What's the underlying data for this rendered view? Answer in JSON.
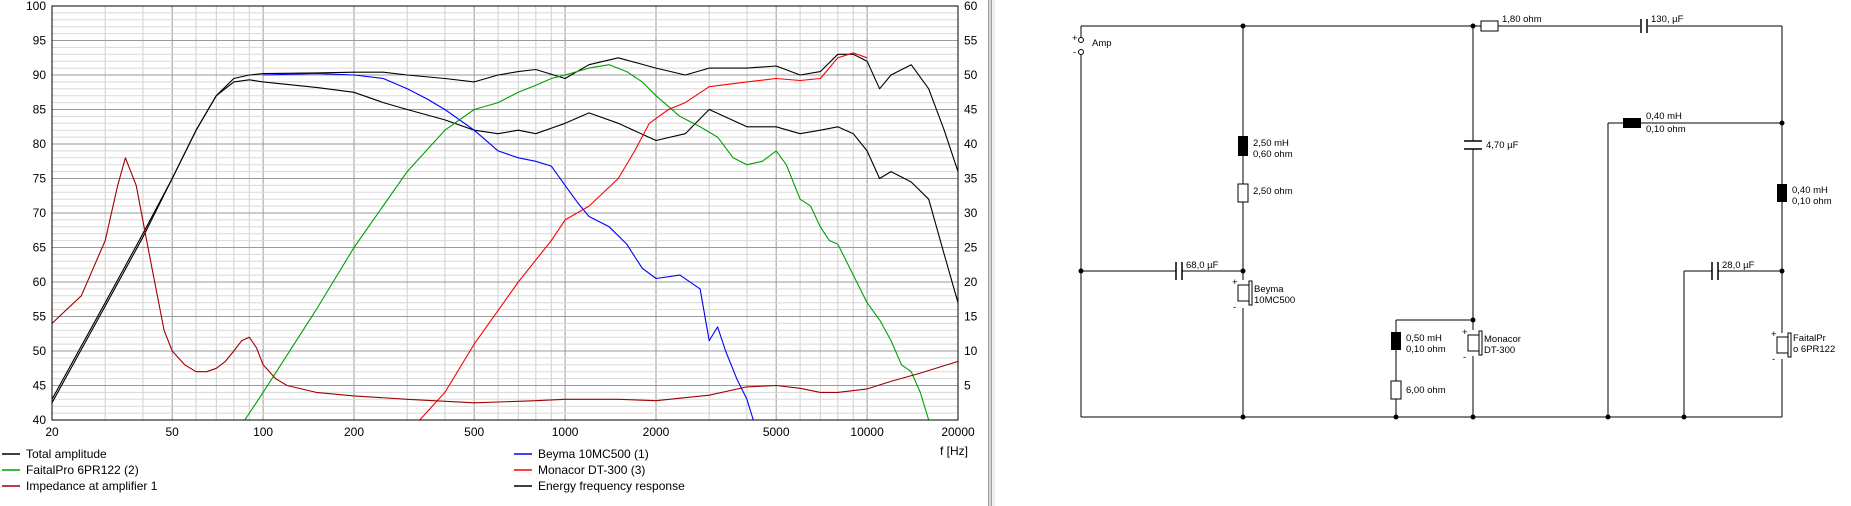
{
  "chart_data": {
    "type": "line",
    "xscale": "log",
    "xlim": [
      20,
      20000
    ],
    "ylim": [
      40,
      100
    ],
    "y2lim": [
      0,
      60
    ],
    "x_ticks": [
      "20",
      "50",
      "100",
      "200",
      "500",
      "1000",
      "2000",
      "5000",
      "10000",
      "20000"
    ],
    "y_ticks": [
      "40",
      "45",
      "50",
      "55",
      "60",
      "65",
      "70",
      "75",
      "80",
      "85",
      "90",
      "95",
      "100"
    ],
    "y2_ticks": [
      "5",
      "10",
      "15",
      "20",
      "25",
      "30",
      "35",
      "40",
      "45",
      "50",
      "55",
      "60"
    ],
    "xlabel": "f [Hz]",
    "grid": true,
    "legend_position": "bottom",
    "series": [
      {
        "name": "Total amplitude",
        "color": "#000000",
        "axis": "left",
        "x": [
          20,
          30,
          40,
          50,
          60,
          70,
          80,
          90,
          100,
          150,
          200,
          250,
          300,
          400,
          500,
          600,
          700,
          800,
          1000,
          1200,
          1500,
          2000,
          2500,
          3000,
          4000,
          5000,
          6000,
          7000,
          8000,
          9000,
          10000,
          11000,
          12000,
          14000,
          16000,
          18000,
          20000
        ],
        "y": [
          43,
          57,
          67,
          75,
          82,
          87,
          89.5,
          90,
          90.2,
          90.3,
          90.4,
          90.4,
          90,
          89.5,
          89,
          90,
          90.5,
          90.8,
          89.5,
          91.5,
          92.5,
          91,
          90,
          91,
          91,
          91.3,
          90,
          90.5,
          93,
          93,
          92,
          88,
          90,
          91.5,
          88,
          82,
          76
        ]
      },
      {
        "name": "Energy frequency response",
        "color": "#000000",
        "axis": "left",
        "x": [
          20,
          30,
          40,
          50,
          60,
          70,
          80,
          90,
          100,
          150,
          200,
          250,
          300,
          400,
          500,
          600,
          700,
          800,
          1000,
          1200,
          1500,
          2000,
          2500,
          3000,
          4000,
          5000,
          6000,
          7000,
          8000,
          9000,
          10000,
          11000,
          12000,
          14000,
          16000,
          18000,
          20000
        ],
        "y": [
          42.5,
          56.5,
          66.5,
          75,
          82,
          87,
          89,
          89.3,
          89,
          88.2,
          87.5,
          86,
          85,
          83.5,
          82,
          81.5,
          82,
          81.5,
          83,
          84.5,
          83,
          80.5,
          81.5,
          85,
          82.5,
          82.5,
          81.5,
          82,
          82.5,
          81.5,
          79,
          75,
          76,
          74.5,
          72,
          64,
          57
        ]
      },
      {
        "name": "Beyma 10MC500 (1)",
        "color": "#0000ff",
        "axis": "left",
        "x": [
          100,
          150,
          200,
          250,
          300,
          350,
          400,
          500,
          600,
          700,
          800,
          900,
          1000,
          1100,
          1200,
          1400,
          1600,
          1800,
          2000,
          2400,
          2800,
          3000,
          3200,
          3400,
          3700,
          4000,
          4200
        ],
        "y": [
          90,
          90.2,
          90,
          89.5,
          88,
          86.5,
          85,
          82,
          79,
          78,
          77.5,
          76.8,
          74,
          71.5,
          69.5,
          68,
          65.5,
          62,
          60.5,
          61,
          59,
          51.5,
          53.5,
          50,
          46,
          43,
          40
        ]
      },
      {
        "name": "FaitalPro 6PR122 (2)",
        "color": "#00a000",
        "axis": "left",
        "x": [
          20,
          50,
          80,
          87,
          100,
          150,
          200,
          300,
          400,
          500,
          600,
          700,
          800,
          900,
          1000,
          1200,
          1400,
          1600,
          1800,
          2000,
          2400,
          2800,
          3200,
          3600,
          4000,
          4500,
          5000,
          5400,
          6000,
          6500,
          7000,
          7500,
          8000,
          9000,
          10000,
          11000,
          12000,
          13000,
          14000,
          15000,
          16000
        ],
        "y": [
          40,
          40,
          40,
          40,
          44,
          56,
          65,
          76,
          82,
          85,
          86,
          87.5,
          88.5,
          89.5,
          90,
          91,
          91.5,
          90.5,
          89,
          87,
          84,
          82.5,
          81,
          78,
          77,
          77.5,
          79,
          77,
          72,
          71,
          68,
          66,
          65.5,
          61,
          57,
          54.5,
          51.5,
          48,
          47,
          44,
          40
        ]
      },
      {
        "name": "Monacor DT-300 (3)",
        "color": "#ff0000",
        "axis": "left",
        "x": [
          20,
          100,
          200,
          300,
          330,
          400,
          500,
          700,
          900,
          1000,
          1200,
          1500,
          1700,
          1900,
          2200,
          2500,
          3000,
          4000,
          5000,
          6000,
          7000,
          8000,
          9000,
          10000
        ],
        "y": [
          40,
          40,
          40,
          40,
          40,
          44,
          51,
          60,
          66,
          69,
          71,
          75,
          79,
          83,
          85,
          86,
          88.3,
          89,
          89.5,
          89.2,
          89.5,
          92.5,
          93.2,
          92.5
        ]
      },
      {
        "name": "Impedance at amplifier 1",
        "color": "#a00000",
        "axis": "right",
        "x": [
          20,
          25,
          30,
          33,
          35,
          38,
          42,
          47,
          50,
          55,
          60,
          65,
          70,
          75,
          80,
          85,
          90,
          95,
          100,
          110,
          120,
          150,
          200,
          300,
          500,
          800,
          1000,
          1500,
          2000,
          3000,
          4000,
          5000,
          6000,
          7000,
          8000,
          10000,
          12000,
          15000,
          20000
        ],
        "y": [
          14,
          18,
          26,
          34,
          38,
          34,
          24,
          13,
          10,
          8,
          7,
          7,
          7.5,
          8.5,
          10,
          11.5,
          12,
          10.5,
          8,
          6,
          5,
          4,
          3.5,
          3,
          2.5,
          2.8,
          3,
          3,
          2.8,
          3.6,
          4.8,
          5,
          4.6,
          4,
          4,
          4.5,
          5.6,
          6.8,
          8.5
        ]
      }
    ]
  },
  "schematic": {
    "amp_label": "Amp",
    "plus_sign": "+",
    "minus_sign": "-",
    "tweeter_series_cap": "130, µF",
    "mid_series_res": "1,80 ohm",
    "woofer_shunt_l_value": "2,50 mH",
    "woofer_shunt_l_res": "0,60 ohm",
    "woofer_shunt_r": "2,50 ohm",
    "woofer_shunt_c": "68,0 µF",
    "woofer_name": [
      "Beyma",
      "10MC500"
    ],
    "mid_series_c": "4,70 µF",
    "mid_shunt_l_value": "0,50 mH",
    "mid_shunt_l_res": "0,10 ohm",
    "mid_shunt_r": "6,00 ohm",
    "mid_name": [
      "Monacor",
      "DT-300"
    ],
    "tw_series_l_value": "0,40 mH",
    "tw_series_l_res": "0,10 ohm",
    "tw_shunt_l_value": "0,40 mH",
    "tw_shunt_l_res": "0,10 ohm",
    "tw_shunt_c": "28,0 µF",
    "tw_name": [
      "FaitalPr",
      "o 6PR122"
    ]
  }
}
